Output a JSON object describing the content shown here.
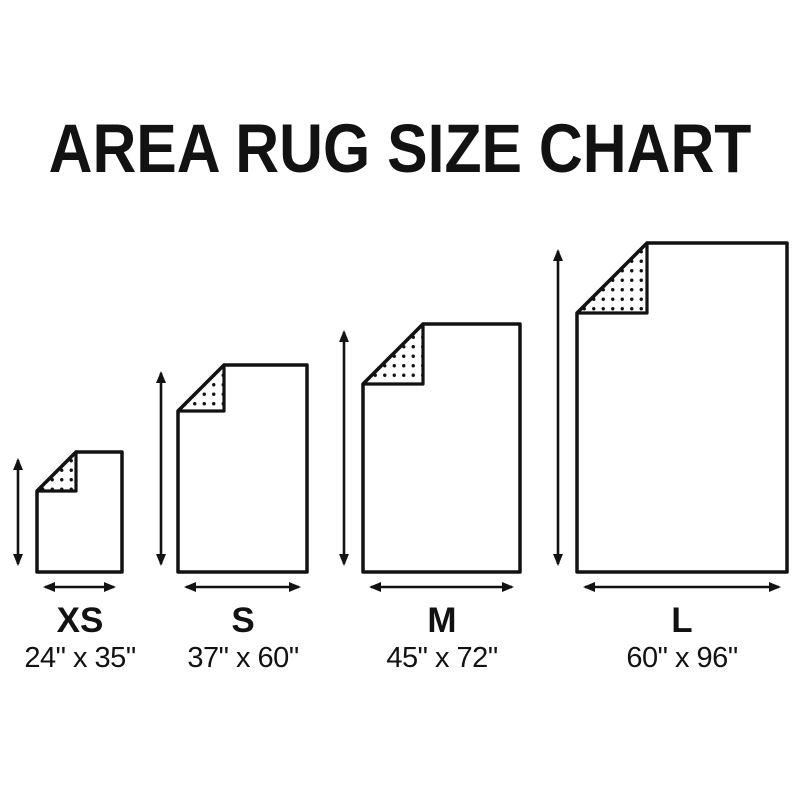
{
  "title": "AREA RUG SIZE CHART",
  "sizes": [
    {
      "id": "xs",
      "label": "XS",
      "dimensions": "24\" x 35\"",
      "width_in": 24,
      "height_in": 35
    },
    {
      "id": "s",
      "label": "S",
      "dimensions": "37\" x 60\"",
      "width_in": 37,
      "height_in": 60
    },
    {
      "id": "m",
      "label": "M",
      "dimensions": "45\" x 72\"",
      "width_in": 45,
      "height_in": 72
    },
    {
      "id": "l",
      "label": "L",
      "dimensions": "60\" x 96\"",
      "width_in": 60,
      "height_in": 96
    }
  ],
  "colors": {
    "background": "#ffffff",
    "ink": "#121212"
  }
}
